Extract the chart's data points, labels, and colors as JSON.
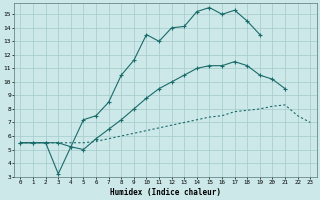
{
  "xlabel": "Humidex (Indice chaleur)",
  "background_color": "#cce8e8",
  "grid_color": "#aacece",
  "line_color": "#1a6b6b",
  "yticks": [
    3,
    4,
    5,
    6,
    7,
    8,
    9,
    10,
    11,
    12,
    13,
    14,
    15
  ],
  "xticks": [
    0,
    1,
    2,
    3,
    4,
    5,
    6,
    7,
    8,
    9,
    10,
    11,
    12,
    13,
    14,
    15,
    16,
    17,
    18,
    19,
    20,
    21,
    22,
    23
  ],
  "line1_x": [
    0,
    1,
    2,
    3,
    4,
    5,
    6,
    7,
    8,
    9,
    10,
    11,
    12,
    13,
    14,
    15,
    16,
    17,
    18,
    19
  ],
  "line1_y": [
    5.5,
    5.5,
    5.5,
    3.2,
    5.2,
    7.2,
    7.5,
    8.5,
    10.5,
    11.6,
    13.5,
    13.0,
    14.0,
    14.1,
    15.2,
    15.5,
    15.0,
    15.3,
    14.5,
    13.5
  ],
  "line2_x": [
    0,
    1,
    2,
    3,
    4,
    5,
    6,
    7,
    8,
    9,
    10,
    11,
    12,
    13,
    14,
    15,
    16,
    17,
    18,
    19,
    20,
    21
  ],
  "line2_y": [
    5.5,
    5.5,
    5.5,
    5.5,
    5.2,
    5.0,
    5.8,
    6.5,
    7.2,
    8.0,
    8.8,
    9.5,
    10.0,
    10.5,
    11.0,
    11.2,
    11.2,
    11.5,
    11.2,
    10.5,
    10.2,
    9.5
  ],
  "line3_x": [
    0,
    1,
    2,
    3,
    4,
    5,
    6,
    7,
    8,
    9,
    10,
    11,
    12,
    13,
    14,
    15,
    16,
    17,
    18,
    19,
    20,
    21,
    22,
    23
  ],
  "line3_y": [
    5.5,
    5.5,
    5.5,
    5.5,
    5.5,
    5.5,
    5.6,
    5.8,
    6.0,
    6.2,
    6.4,
    6.6,
    6.8,
    7.0,
    7.2,
    7.4,
    7.5,
    7.8,
    7.9,
    8.0,
    8.2,
    8.3,
    7.5,
    7.0
  ]
}
